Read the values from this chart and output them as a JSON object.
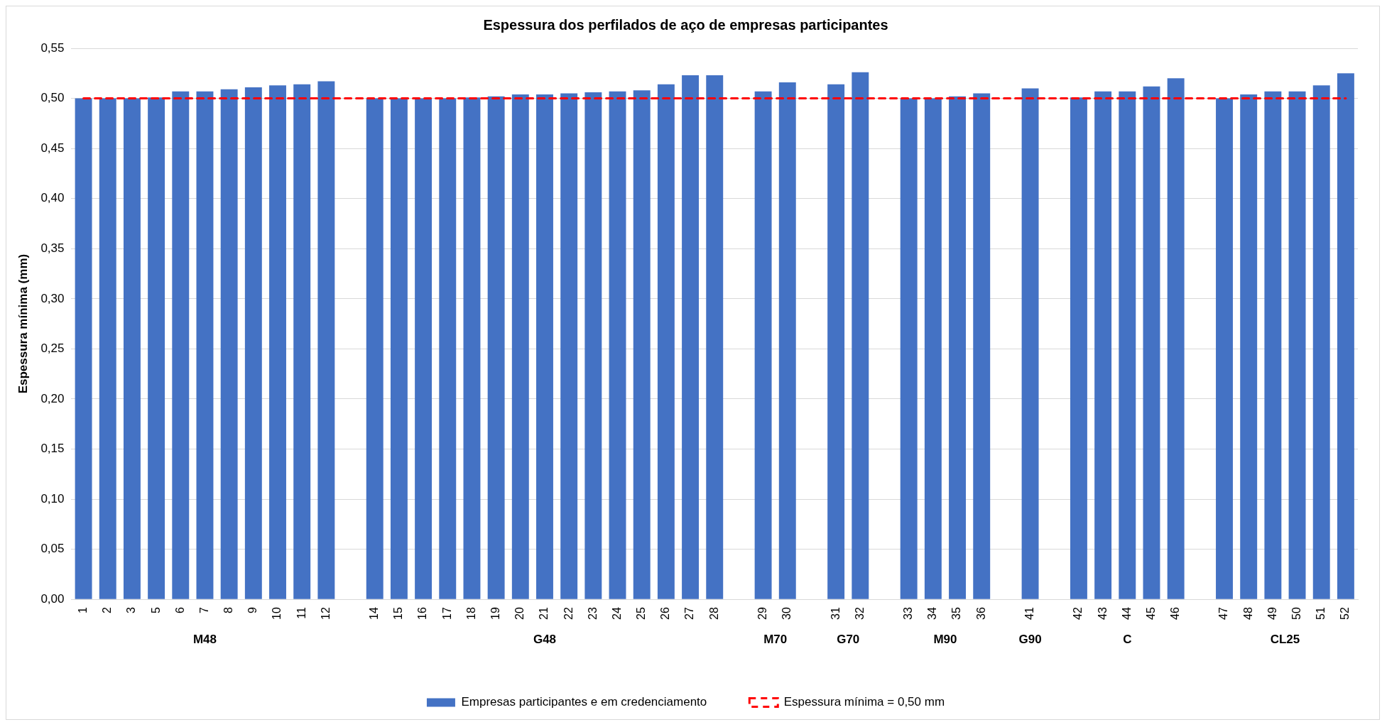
{
  "chart_data": {
    "type": "bar",
    "title": "Espessura dos perfilados de aço de empresas participantes",
    "ylabel": "Espessura mínima (mm)",
    "categories": [
      "1",
      "2",
      "3",
      "5",
      "6",
      "7",
      "8",
      "9",
      "10",
      "11",
      "12",
      null,
      "14",
      "15",
      "16",
      "17",
      "18",
      "19",
      "20",
      "21",
      "22",
      "23",
      "24",
      "25",
      "26",
      "27",
      "28",
      null,
      "29",
      "30",
      null,
      "31",
      "32",
      null,
      "33",
      "34",
      "35",
      "36",
      null,
      "41",
      null,
      "42",
      "43",
      "44",
      "45",
      "46",
      null,
      "47",
      "48",
      "49",
      "50",
      "51",
      "52"
    ],
    "series": [
      {
        "name": "Empresas participantes e em credenciamento",
        "color": "#4472c4",
        "values": [
          0.5,
          0.5,
          0.5,
          0.501,
          0.507,
          0.507,
          0.509,
          0.511,
          0.513,
          0.514,
          0.517,
          null,
          0.5,
          0.5,
          0.5,
          0.5,
          0.501,
          0.502,
          0.504,
          0.504,
          0.505,
          0.506,
          0.507,
          0.508,
          0.514,
          0.523,
          0.523,
          null,
          0.507,
          0.516,
          null,
          0.514,
          0.526,
          null,
          0.5,
          0.5,
          0.502,
          0.505,
          null,
          0.51,
          null,
          0.501,
          0.507,
          0.507,
          0.512,
          0.52,
          null,
          0.5,
          0.504,
          0.507,
          0.507,
          0.513,
          0.525
        ]
      },
      {
        "name": "Espessura mínima = 0,50 mm",
        "type": "line",
        "color": "#ff0000",
        "line_style": "dashed",
        "marker": "none",
        "values": [
          0.5,
          0.5,
          0.5,
          0.5,
          0.5,
          0.5,
          0.5,
          0.5,
          0.5,
          0.5,
          0.5,
          0.5,
          0.5,
          0.5,
          0.5,
          0.5,
          0.5,
          0.5,
          0.5,
          0.5,
          0.5,
          0.5,
          0.5,
          0.5,
          0.5,
          0.5,
          0.5,
          0.5,
          0.5,
          0.5,
          0.5,
          0.5,
          0.5,
          0.5,
          0.5,
          0.5,
          0.5,
          0.5,
          0.5,
          0.5,
          0.5,
          0.5,
          0.5,
          0.5,
          0.5,
          0.5,
          0.5,
          0.5,
          0.5,
          0.5,
          0.5,
          0.5,
          0.5
        ]
      }
    ],
    "annotations": [
      "M48",
      "G48",
      "M70",
      "G70",
      "M90",
      "G90",
      "C",
      "CL25"
    ],
    "ylim": [
      0,
      0.55
    ],
    "yticks": [
      {
        "value": 0,
        "label": "0,00"
      },
      {
        "value": 0.05,
        "label": "0,05"
      },
      {
        "value": 0.1,
        "label": "0,10"
      },
      {
        "value": 0.15,
        "label": "0,15"
      },
      {
        "value": 0.2,
        "label": "0,20"
      },
      {
        "value": 0.25,
        "label": "0,25"
      },
      {
        "value": 0.3,
        "label": "0,30"
      },
      {
        "value": 0.35,
        "label": "0,35"
      },
      {
        "value": 0.4,
        "label": "0,40"
      },
      {
        "value": 0.45,
        "label": "0,45"
      },
      {
        "value": 0.5,
        "label": "0,50"
      },
      {
        "value": 0.55,
        "label": "0,55"
      }
    ],
    "grid": "y",
    "legend": "bottom"
  }
}
